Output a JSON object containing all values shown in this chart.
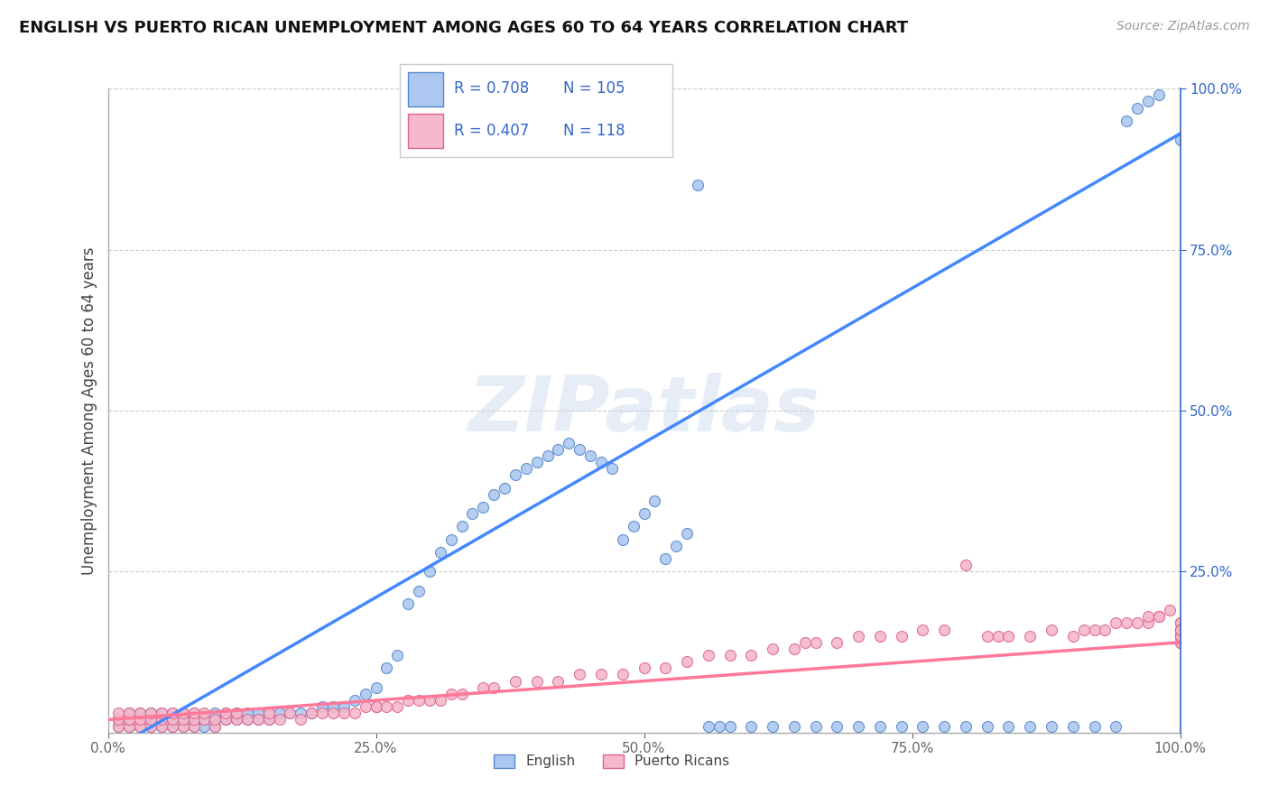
{
  "title": "ENGLISH VS PUERTO RICAN UNEMPLOYMENT AMONG AGES 60 TO 64 YEARS CORRELATION CHART",
  "source": "Source: ZipAtlas.com",
  "ylabel": "Unemployment Among Ages 60 to 64 years",
  "xlim": [
    0.0,
    1.0
  ],
  "ylim": [
    0.0,
    1.0
  ],
  "xtick_labels": [
    "0.0%",
    "25.0%",
    "50.0%",
    "75.0%",
    "100.0%"
  ],
  "xtick_values": [
    0.0,
    0.25,
    0.5,
    0.75,
    1.0
  ],
  "right_ytick_labels": [
    "25.0%",
    "50.0%",
    "75.0%",
    "100.0%"
  ],
  "right_ytick_values": [
    0.25,
    0.5,
    0.75,
    1.0
  ],
  "english_fill": "#adc8f0",
  "english_edge": "#5588cc",
  "pr_fill": "#f5b8cc",
  "pr_edge": "#dd6688",
  "english_R": 0.708,
  "english_N": 105,
  "pr_R": 0.407,
  "pr_N": 118,
  "legend_label_english": "English",
  "legend_label_pr": "Puerto Ricans",
  "title_color": "#111111",
  "watermark": "ZIPatlas",
  "watermark_color": "#c8d8ee",
  "grid_color": "#cccccc",
  "line_english": "#4488ff",
  "line_pr": "#ff7799",
  "text_blue": "#3366cc",
  "background": "#ffffff",
  "eng_x": [
    0.01,
    0.01,
    0.02,
    0.02,
    0.02,
    0.03,
    0.03,
    0.03,
    0.04,
    0.04,
    0.04,
    0.05,
    0.05,
    0.05,
    0.05,
    0.06,
    0.06,
    0.06,
    0.07,
    0.07,
    0.07,
    0.08,
    0.08,
    0.08,
    0.09,
    0.09,
    0.1,
    0.1,
    0.1,
    0.11,
    0.11,
    0.12,
    0.12,
    0.13,
    0.13,
    0.14,
    0.14,
    0.15,
    0.15,
    0.16,
    0.17,
    0.18,
    0.19,
    0.2,
    0.21,
    0.22,
    0.23,
    0.24,
    0.25,
    0.26,
    0.27,
    0.28,
    0.29,
    0.3,
    0.31,
    0.32,
    0.33,
    0.34,
    0.35,
    0.36,
    0.37,
    0.38,
    0.39,
    0.4,
    0.41,
    0.42,
    0.43,
    0.44,
    0.45,
    0.46,
    0.47,
    0.48,
    0.49,
    0.5,
    0.51,
    0.52,
    0.53,
    0.54,
    0.55,
    0.56,
    0.57,
    0.58,
    0.6,
    0.62,
    0.64,
    0.66,
    0.68,
    0.7,
    0.72,
    0.74,
    0.76,
    0.78,
    0.8,
    0.82,
    0.84,
    0.86,
    0.88,
    0.9,
    0.92,
    0.94,
    0.95,
    0.96,
    0.97,
    0.98,
    1.0
  ],
  "eng_y": [
    0.01,
    0.02,
    0.01,
    0.02,
    0.03,
    0.01,
    0.02,
    0.03,
    0.01,
    0.02,
    0.03,
    0.01,
    0.02,
    0.02,
    0.03,
    0.01,
    0.02,
    0.03,
    0.01,
    0.02,
    0.03,
    0.01,
    0.02,
    0.03,
    0.01,
    0.02,
    0.01,
    0.02,
    0.03,
    0.02,
    0.03,
    0.02,
    0.03,
    0.02,
    0.03,
    0.02,
    0.03,
    0.02,
    0.03,
    0.03,
    0.03,
    0.03,
    0.03,
    0.04,
    0.04,
    0.04,
    0.05,
    0.06,
    0.07,
    0.1,
    0.12,
    0.2,
    0.22,
    0.25,
    0.28,
    0.3,
    0.32,
    0.34,
    0.35,
    0.37,
    0.38,
    0.4,
    0.41,
    0.42,
    0.43,
    0.44,
    0.45,
    0.44,
    0.43,
    0.42,
    0.41,
    0.3,
    0.32,
    0.34,
    0.36,
    0.27,
    0.29,
    0.31,
    0.85,
    0.01,
    0.01,
    0.01,
    0.01,
    0.01,
    0.01,
    0.01,
    0.01,
    0.01,
    0.01,
    0.01,
    0.01,
    0.01,
    0.01,
    0.01,
    0.01,
    0.01,
    0.01,
    0.01,
    0.01,
    0.01,
    0.95,
    0.97,
    0.98,
    0.99,
    0.92
  ],
  "pr_x": [
    0.01,
    0.01,
    0.01,
    0.02,
    0.02,
    0.02,
    0.02,
    0.03,
    0.03,
    0.03,
    0.03,
    0.04,
    0.04,
    0.04,
    0.05,
    0.05,
    0.05,
    0.06,
    0.06,
    0.06,
    0.07,
    0.07,
    0.07,
    0.08,
    0.08,
    0.08,
    0.09,
    0.09,
    0.1,
    0.1,
    0.11,
    0.11,
    0.12,
    0.12,
    0.13,
    0.14,
    0.15,
    0.15,
    0.16,
    0.17,
    0.18,
    0.19,
    0.2,
    0.21,
    0.22,
    0.23,
    0.24,
    0.25,
    0.25,
    0.26,
    0.27,
    0.28,
    0.29,
    0.3,
    0.31,
    0.32,
    0.33,
    0.35,
    0.36,
    0.38,
    0.4,
    0.42,
    0.44,
    0.46,
    0.48,
    0.5,
    0.52,
    0.54,
    0.56,
    0.58,
    0.6,
    0.62,
    0.64,
    0.65,
    0.66,
    0.68,
    0.7,
    0.72,
    0.74,
    0.76,
    0.78,
    0.8,
    0.82,
    0.83,
    0.84,
    0.86,
    0.88,
    0.9,
    0.91,
    0.92,
    0.93,
    0.94,
    0.95,
    0.96,
    0.97,
    0.97,
    0.98,
    0.98,
    0.99,
    1.0,
    1.0,
    1.0,
    1.0,
    1.0,
    1.0,
    1.0,
    1.0,
    1.0,
    1.0,
    1.0,
    1.0,
    1.0,
    1.0,
    1.0,
    1.0,
    1.0,
    1.0,
    1.0
  ],
  "pr_y": [
    0.01,
    0.02,
    0.03,
    0.01,
    0.02,
    0.02,
    0.03,
    0.01,
    0.01,
    0.02,
    0.03,
    0.01,
    0.02,
    0.03,
    0.01,
    0.02,
    0.03,
    0.01,
    0.02,
    0.03,
    0.01,
    0.02,
    0.03,
    0.01,
    0.02,
    0.03,
    0.02,
    0.03,
    0.01,
    0.02,
    0.02,
    0.03,
    0.02,
    0.03,
    0.02,
    0.02,
    0.02,
    0.03,
    0.02,
    0.03,
    0.02,
    0.03,
    0.03,
    0.03,
    0.03,
    0.03,
    0.04,
    0.04,
    0.04,
    0.04,
    0.04,
    0.05,
    0.05,
    0.05,
    0.05,
    0.06,
    0.06,
    0.07,
    0.07,
    0.08,
    0.08,
    0.08,
    0.09,
    0.09,
    0.09,
    0.1,
    0.1,
    0.11,
    0.12,
    0.12,
    0.12,
    0.13,
    0.13,
    0.14,
    0.14,
    0.14,
    0.15,
    0.15,
    0.15,
    0.16,
    0.16,
    0.26,
    0.15,
    0.15,
    0.15,
    0.15,
    0.16,
    0.15,
    0.16,
    0.16,
    0.16,
    0.17,
    0.17,
    0.17,
    0.17,
    0.18,
    0.18,
    0.18,
    0.19,
    0.14,
    0.15,
    0.15,
    0.16,
    0.16,
    0.17,
    0.15,
    0.16,
    0.14,
    0.15,
    0.15,
    0.16,
    0.17,
    0.17,
    0.16,
    0.15,
    0.14,
    0.15,
    0.16
  ]
}
